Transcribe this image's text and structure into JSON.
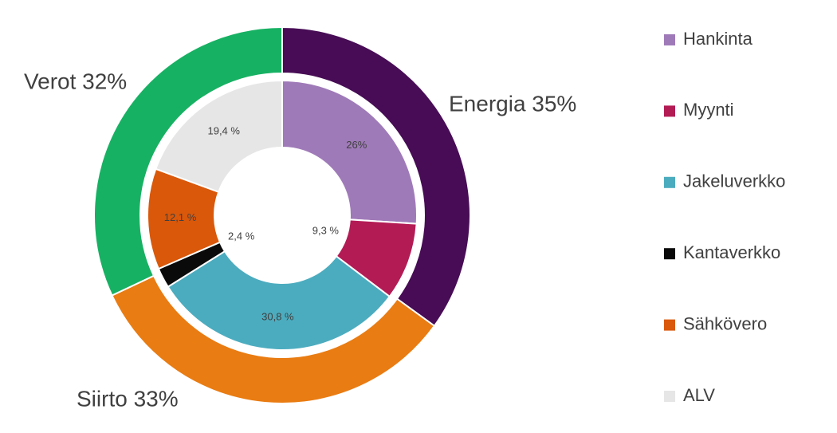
{
  "chart_data": {
    "type": "nested-donut",
    "outer": {
      "labels": [
        "Energia 35%",
        "Siirto 33%",
        "Verot 32%"
      ],
      "values": [
        35,
        33,
        32
      ],
      "colors": [
        "#470c55",
        "#e97c12",
        "#17b163"
      ]
    },
    "inner": {
      "categories": [
        "Hankinta",
        "Myynti",
        "Jakeluverkko",
        "Kantaverkko",
        "Sähkövero",
        "ALV"
      ],
      "values": [
        26,
        9.3,
        30.8,
        2.4,
        12.1,
        19.4
      ],
      "value_labels": [
        "26%",
        "9,3 %",
        "30,8 %",
        "2,4 %",
        "12,1 %",
        "19,4 %"
      ],
      "colors": [
        "#9f7ab8",
        "#b31b55",
        "#4cacbf",
        "#0a0a0a",
        "#d9580a",
        "#e6e6e6"
      ]
    },
    "legend": "right"
  }
}
